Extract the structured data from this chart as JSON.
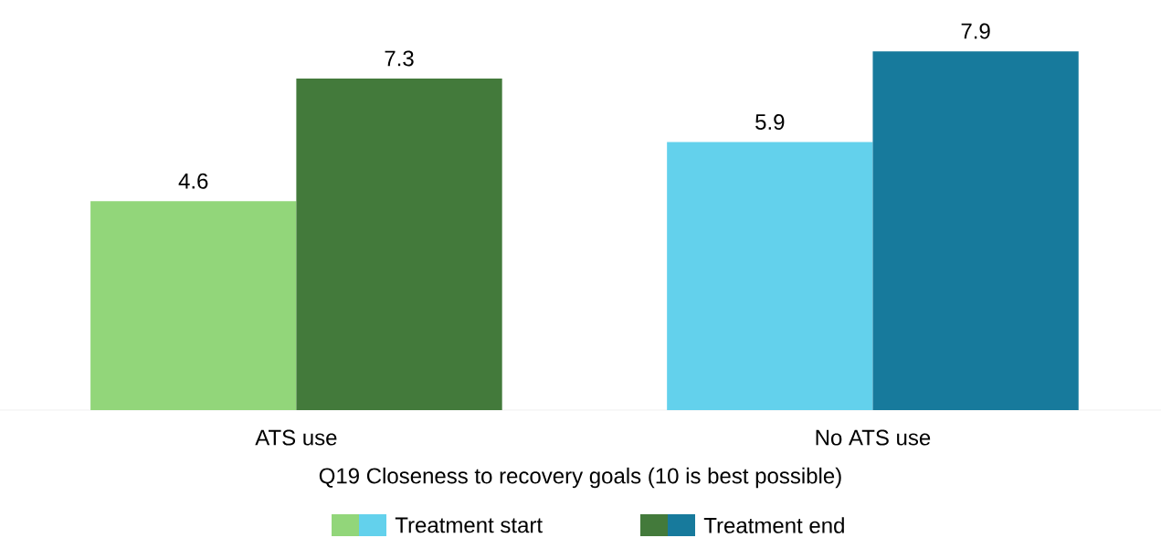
{
  "chart_data": {
    "type": "bar",
    "categories": [
      "ATS use",
      "No ATS use"
    ],
    "xlabel": "Q19 Closeness to recovery goals (10 is best possible)",
    "series": [
      {
        "name": "Treatment start",
        "colors": [
          "#92d67a",
          "#63d1ec"
        ],
        "values": [
          4.6,
          5.9
        ]
      },
      {
        "name": "Treatment end",
        "colors": [
          "#437a3b",
          "#177a9c"
        ],
        "values": [
          7.3,
          7.9
        ]
      }
    ],
    "data_labels": true,
    "legend": "bottom",
    "grid": false
  }
}
